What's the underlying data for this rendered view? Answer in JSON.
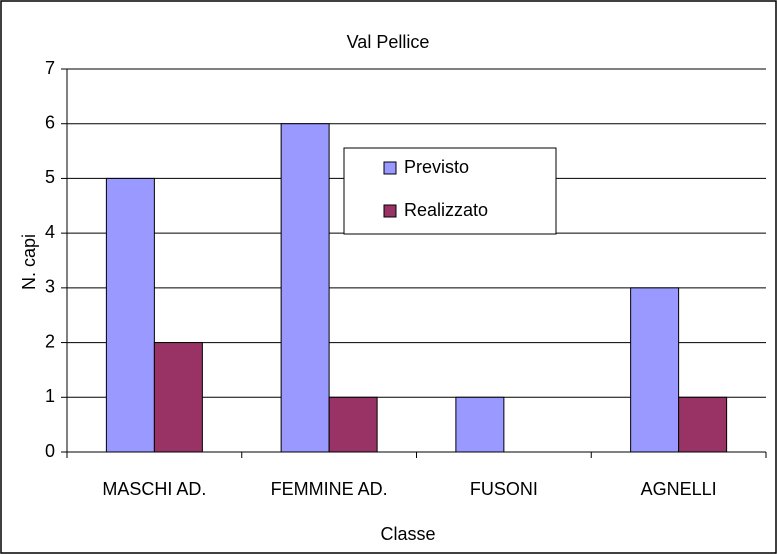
{
  "chart_data": {
    "type": "bar",
    "title": "Val Pellice",
    "x_label": "Classe",
    "y_label": "N. capi",
    "categories": [
      "MASCHI AD.",
      "FEMMINE AD.",
      "FUSONI",
      "AGNELLI"
    ],
    "series": [
      {
        "name": "Previsto",
        "color": "#9999ff",
        "values": [
          5,
          6,
          1,
          3
        ]
      },
      {
        "name": "Realizzato",
        "color": "#993366",
        "values": [
          2,
          1,
          0,
          1
        ]
      }
    ],
    "ylim": [
      0,
      7
    ],
    "yticks": [
      0,
      1,
      2,
      3,
      4,
      5,
      6,
      7
    ],
    "grid": true
  }
}
